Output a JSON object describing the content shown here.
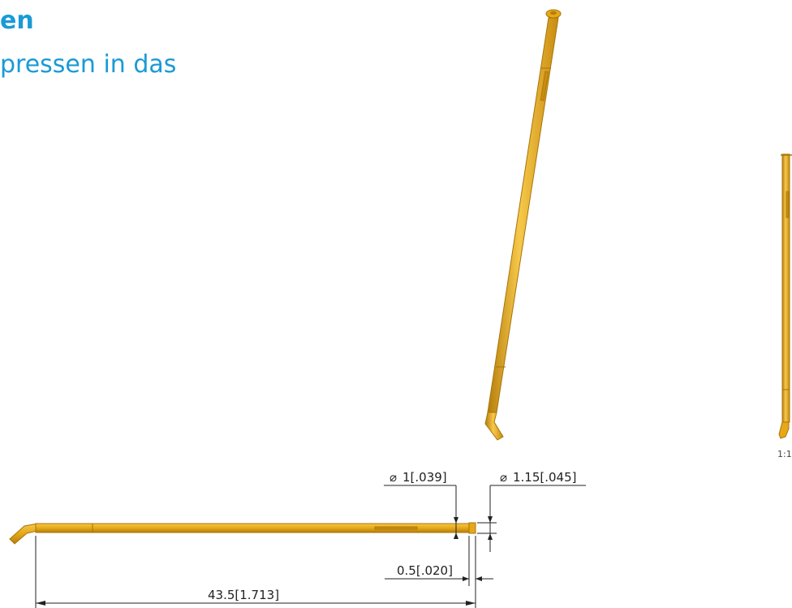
{
  "heading": {
    "line1": "en",
    "line2": "pressen in das"
  },
  "dimensions": {
    "diameter_small": "1[.039]",
    "diameter_large": "1.15[.045]",
    "tip_length": "0.5[.020]",
    "overall_length": "43.5[1.713]"
  },
  "symbols": {
    "diameter": "⌀"
  },
  "side_view": {
    "scale_label": "1:1"
  },
  "colors": {
    "pin_fill": "#e6a817",
    "pin_edge": "#a8740a",
    "pin_highlight": "#f6c84a",
    "heading": "#1a9ad6"
  }
}
